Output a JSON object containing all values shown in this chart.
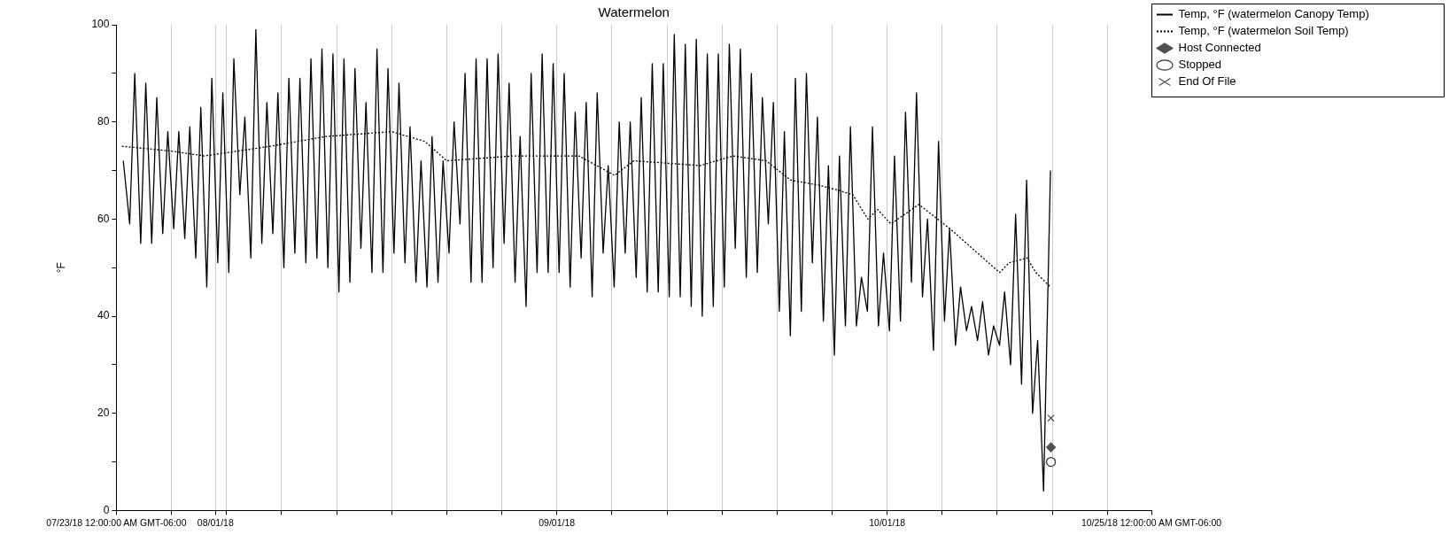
{
  "chart_data": {
    "type": "line",
    "title": "Watermelon",
    "ylabel": "°F",
    "xlim": [
      "--07-23",
      "--10-25"
    ],
    "xticks": [
      {
        "value": "--07-23",
        "label": "07/23/18 12:00:00 AM GMT-06:00"
      },
      {
        "value": "--07-28",
        "label": null
      },
      {
        "value": "--08-01",
        "label": "08/01/18"
      },
      {
        "value": "--08-02",
        "label": null
      },
      {
        "value": "--08-07",
        "label": null
      },
      {
        "value": "--08-12",
        "label": null
      },
      {
        "value": "--08-17",
        "label": null
      },
      {
        "value": "--08-22",
        "label": null
      },
      {
        "value": "--08-27",
        "label": null
      },
      {
        "value": "--09-01",
        "label": "09/01/18"
      },
      {
        "value": "--09-06",
        "label": null
      },
      {
        "value": "--09-11",
        "label": null
      },
      {
        "value": "--09-16",
        "label": null
      },
      {
        "value": "--09-21",
        "label": null
      },
      {
        "value": "--09-26",
        "label": null
      },
      {
        "value": "--10-01",
        "label": "10/01/18"
      },
      {
        "value": "--10-06",
        "label": null
      },
      {
        "value": "--10-11",
        "label": null
      },
      {
        "value": "--10-16",
        "label": null
      },
      {
        "value": "--10-21",
        "label": null
      },
      {
        "value": "--10-25",
        "label": "10/25/18 12:00:00 AM GMT-06:00"
      }
    ],
    "ylim": [
      0,
      100
    ],
    "yticks": [
      0,
      {
        "value": 10,
        "label": null
      },
      20,
      {
        "value": 30,
        "label": null
      },
      40,
      {
        "value": 50,
        "label": null
      },
      60,
      {
        "value": 70,
        "label": null
      },
      80,
      {
        "value": 90,
        "label": null
      },
      100
    ],
    "grid": "x",
    "legend": "top right",
    "marker": "none",
    "series": [
      {
        "name": "Temp, °F (watermelon Canopy Temp)",
        "color": "#000000",
        "line_style": "solid",
        "x": [
          "--07-23T15:00",
          "--07-24T05:00",
          "--07-24T16:00",
          "--07-25T05:00",
          "--07-25T16:00",
          "--07-26T05:00",
          "--07-26T16:00",
          "--07-27T05:00",
          "--07-27T16:00",
          "--07-28T05:00",
          "--07-28T16:00",
          "--07-29T05:00",
          "--07-29T16:00",
          "--07-30T05:00",
          "--07-30T16:00",
          "--07-31T05:00",
          "--07-31T16:00",
          "--08-01T05:00",
          "--08-01T16:00",
          "--08-02T05:00",
          "--08-02T16:00",
          "--08-03T05:00",
          "--08-03T16:00",
          "--08-04T05:00",
          "--08-04T16:00",
          "--08-05T05:00",
          "--08-05T16:00",
          "--08-06T05:00",
          "--08-06T16:00",
          "--08-07T05:00",
          "--08-07T16:00",
          "--08-08T05:00",
          "--08-08T16:00",
          "--08-09T05:00",
          "--08-09T16:00",
          "--08-10T05:00",
          "--08-10T16:00",
          "--08-11T05:00",
          "--08-11T16:00",
          "--08-12T05:00",
          "--08-12T16:00",
          "--08-13T05:00",
          "--08-13T16:00",
          "--08-14T05:00",
          "--08-14T16:00",
          "--08-15T05:00",
          "--08-15T16:00",
          "--08-16T05:00",
          "--08-16T16:00",
          "--08-17T05:00",
          "--08-17T16:00",
          "--08-18T05:00",
          "--08-18T16:00",
          "--08-19T05:00",
          "--08-19T16:00",
          "--08-20T05:00",
          "--08-20T16:00",
          "--08-21T05:00",
          "--08-21T16:00",
          "--08-22T05:00",
          "--08-22T16:00",
          "--08-23T05:00",
          "--08-23T16:00",
          "--08-24T05:00",
          "--08-24T16:00",
          "--08-25T05:00",
          "--08-25T16:00",
          "--08-26T05:00",
          "--08-26T16:00",
          "--08-27T05:00",
          "--08-27T16:00",
          "--08-28T05:00",
          "--08-28T16:00",
          "--08-29T05:00",
          "--08-29T16:00",
          "--08-30T05:00",
          "--08-30T16:00",
          "--08-31T05:00",
          "--08-31T16:00",
          "--09-01T05:00",
          "--09-01T16:00",
          "--09-02T05:00",
          "--09-02T16:00",
          "--09-03T05:00",
          "--09-03T16:00",
          "--09-04T05:00",
          "--09-04T16:00",
          "--09-05T05:00",
          "--09-05T16:00",
          "--09-06T05:00",
          "--09-06T16:00",
          "--09-07T05:00",
          "--09-07T16:00",
          "--09-08T05:00",
          "--09-08T16:00",
          "--09-09T05:00",
          "--09-09T16:00",
          "--09-10T05:00",
          "--09-10T16:00",
          "--09-11T05:00",
          "--09-11T16:00",
          "--09-12T05:00",
          "--09-12T16:00",
          "--09-13T05:00",
          "--09-13T16:00",
          "--09-14T05:00",
          "--09-14T16:00",
          "--09-15T05:00",
          "--09-15T16:00",
          "--09-16T05:00",
          "--09-16T16:00",
          "--09-17T05:00",
          "--09-17T16:00",
          "--09-18T05:00",
          "--09-18T16:00",
          "--09-19T05:00",
          "--09-19T16:00",
          "--09-20T05:00",
          "--09-20T16:00",
          "--09-21T05:00",
          "--09-21T16:00",
          "--09-22T05:00",
          "--09-22T16:00",
          "--09-23T05:00",
          "--09-23T16:00",
          "--09-24T05:00",
          "--09-24T16:00",
          "--09-25T05:00",
          "--09-25T16:00",
          "--09-26T05:00",
          "--09-26T16:00",
          "--09-27T05:00",
          "--09-27T16:00",
          "--09-28T05:00",
          "--09-28T16:00",
          "--09-29T05:00",
          "--09-29T16:00",
          "--09-30T05:00",
          "--09-30T16:00",
          "--10-01T05:00",
          "--10-01T16:00",
          "--10-02T05:00",
          "--10-02T16:00",
          "--10-03T05:00",
          "--10-03T16:00",
          "--10-04T05:00",
          "--10-04T16:00",
          "--10-05T05:00",
          "--10-05T16:00",
          "--10-06T05:00",
          "--10-06T16:00",
          "--10-07T05:00",
          "--10-07T16:00",
          "--10-08T05:00",
          "--10-08T16:00",
          "--10-09T05:00",
          "--10-09T16:00",
          "--10-10T05:00",
          "--10-10T16:00",
          "--10-11T05:00",
          "--10-11T16:00",
          "--10-12T05:00",
          "--10-12T16:00",
          "--10-13T05:00",
          "--10-13T16:00",
          "--10-14T05:00",
          "--10-14T16:00",
          "--10-15T05:00",
          "--10-15T20:00"
        ],
        "values": [
          72,
          59,
          90,
          55,
          88,
          55,
          85,
          57,
          78,
          58,
          78,
          56,
          79,
          52,
          83,
          46,
          89,
          51,
          86,
          49,
          93,
          65,
          81,
          52,
          99,
          55,
          84,
          57,
          86,
          50,
          89,
          53,
          89,
          51,
          93,
          52,
          95,
          50,
          94,
          45,
          93,
          47,
          91,
          54,
          84,
          49,
          95,
          49,
          91,
          53,
          88,
          51,
          79,
          47,
          72,
          46,
          77,
          47,
          72,
          53,
          80,
          59,
          90,
          47,
          93,
          47,
          93,
          50,
          94,
          55,
          88,
          47,
          77,
          42,
          90,
          49,
          94,
          49,
          92,
          49,
          90,
          46,
          82,
          52,
          84,
          44,
          86,
          53,
          71,
          46,
          80,
          53,
          80,
          48,
          85,
          45,
          92,
          45,
          92,
          44,
          98,
          44,
          96,
          42,
          97,
          40,
          94,
          42,
          94,
          46,
          96,
          54,
          95,
          48,
          90,
          49,
          85,
          59,
          84,
          41,
          78,
          36,
          89,
          41,
          90,
          51,
          81,
          39,
          71,
          32,
          73,
          38,
          79,
          38,
          48,
          41,
          79,
          38,
          53,
          37,
          73,
          39,
          82,
          47,
          86,
          44,
          60,
          33,
          76,
          39,
          58,
          34,
          46,
          37,
          42,
          35,
          43,
          32,
          38,
          34,
          45,
          30,
          61,
          26,
          68,
          20,
          35,
          4,
          70
        ]
      },
      {
        "name": "Temp, °F (watermelon Soil Temp)",
        "color": "#000000",
        "line_style": "dotted",
        "x": [
          "--07-23T12:00",
          "--07-28T00:00",
          "--07-31T00:00",
          "--08-06T00:00",
          "--08-11T00:00",
          "--08-17T00:00",
          "--08-20T00:00",
          "--08-21T00:00",
          "--08-22T00:00",
          "--08-28T00:00",
          "--09-03T00:00",
          "--09-06T06:00",
          "--09-08T00:00",
          "--09-14T00:00",
          "--09-17T00:00",
          "--09-20T00:00",
          "--09-22T06:00",
          "--09-24T18:00",
          "--09-26T12:00",
          "--09-27T21:00",
          "--09-29T06:00",
          "--09-30T03:00",
          "--10-01T08:00",
          "--10-03T21:00",
          "--10-05T14:00",
          "--10-06T17:00",
          "--10-09T05:00",
          "--10-11T05:00",
          "--10-12T02:00",
          "--10-13T17:00",
          "--10-14T12:00",
          "--10-15T20:00"
        ],
        "values": [
          75,
          74,
          73,
          75,
          77,
          78,
          76,
          74,
          72,
          73,
          73,
          69,
          72,
          71,
          73,
          72,
          68,
          67,
          66,
          65,
          60,
          62,
          59,
          63,
          60,
          58,
          53,
          49,
          51,
          52,
          49,
          46
        ]
      },
      {
        "name": "Host Connected",
        "color": "#505050",
        "type": "scatter",
        "marker": "diamond",
        "x": [
          "--10-15T21:00"
        ],
        "values": [
          13
        ]
      },
      {
        "name": "Stopped",
        "color": "#303030",
        "type": "scatter",
        "marker": "circle",
        "x": [
          "--10-15T21:00"
        ],
        "values": [
          10
        ]
      },
      {
        "name": "End Of File",
        "color": "#505050",
        "type": "scatter",
        "marker": "cross",
        "x": [
          "--10-15T21:00"
        ],
        "values": [
          19
        ]
      }
    ]
  }
}
